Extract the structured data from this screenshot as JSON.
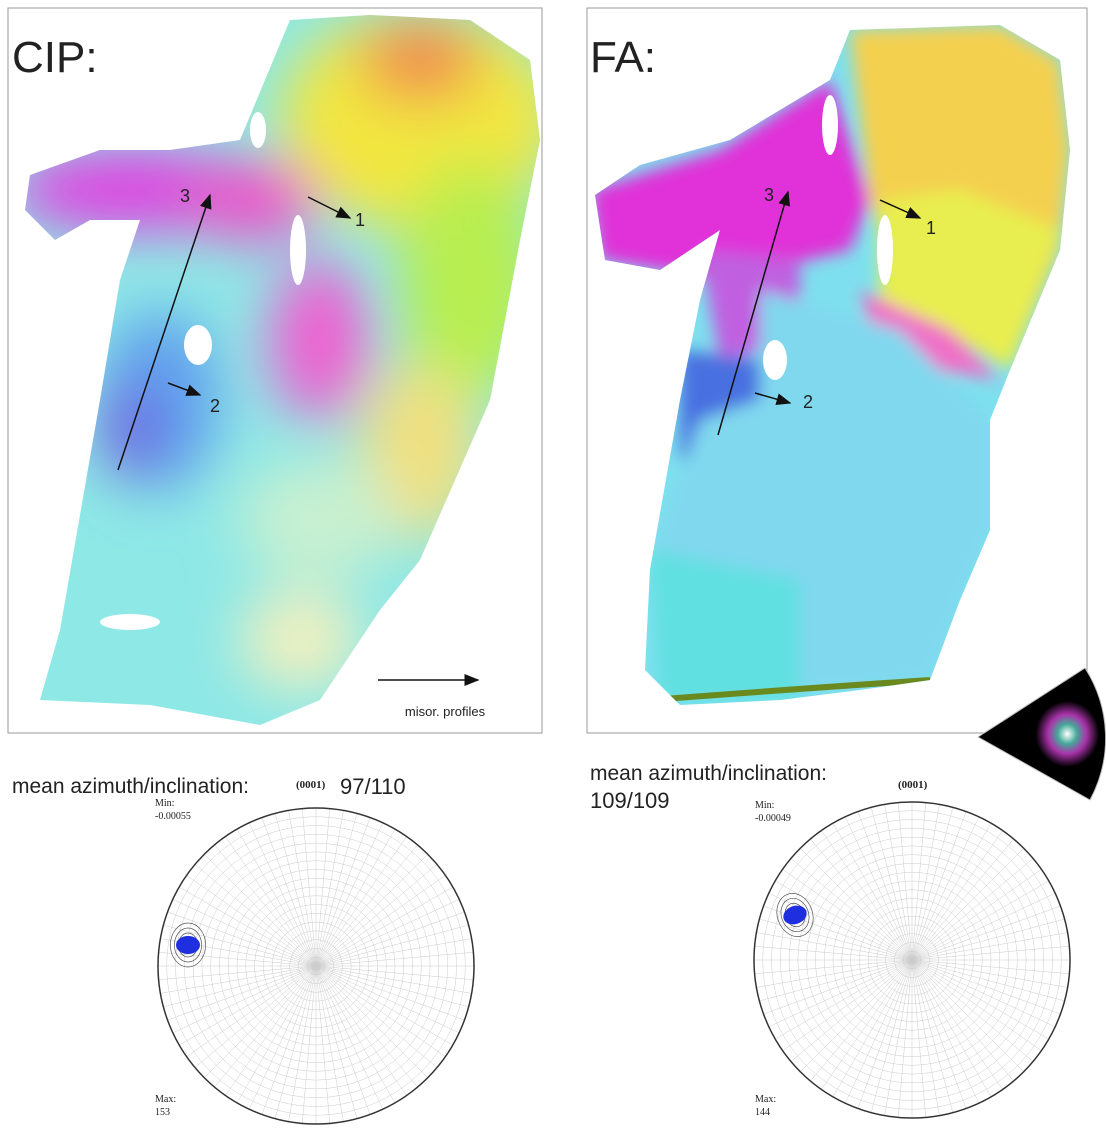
{
  "panels": [
    {
      "label": "CIP:",
      "arrows": [
        "1",
        "2",
        "3"
      ],
      "profile_note": "misor. profiles",
      "pole_figure": {
        "title": "mean azimuth/inclination:",
        "plane": "(0001)",
        "value": "97/110",
        "min_label": "Min:",
        "min": "-0.00055",
        "max_label": "Max:",
        "max": "153"
      }
    },
    {
      "label": "FA:",
      "arrows": [
        "1",
        "2",
        "3"
      ],
      "pole_figure": {
        "title": "mean azimuth/inclination:",
        "plane": "(0001)",
        "value": "109/109",
        "min_label": "Min:",
        "min": "-0.00049",
        "max_label": "Max:",
        "max": "144"
      }
    }
  ]
}
